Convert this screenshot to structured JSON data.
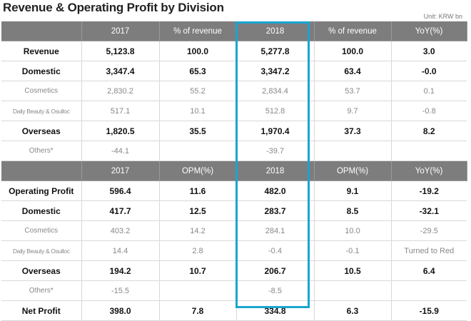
{
  "title": "Revenue & Operating Profit by Division",
  "unit": "Unit: KRW bn",
  "highlight_color": "#1aa4d0",
  "section1": {
    "headers": [
      "",
      "2017",
      "% of revenue",
      "2018",
      "% of revenue",
      "YoY(%)"
    ],
    "rows": [
      {
        "label": "Revenue",
        "style": "bold",
        "cells": [
          "5,123.8",
          "100.0",
          "5,277.8",
          "100.0",
          "3.0"
        ]
      },
      {
        "label": "Domestic",
        "style": "bold",
        "cells": [
          "3,347.4",
          "65.3",
          "3,347.2",
          "63.4",
          "-0.0"
        ]
      },
      {
        "label": "Cosmetics",
        "style": "sub",
        "cells": [
          "2,830.2",
          "55.2",
          "2,834.4",
          "53.7",
          "0.1"
        ]
      },
      {
        "label": "Daily Beauty & Osulloc",
        "style": "sub",
        "cells": [
          "517.1",
          "10.1",
          "512.8",
          "9.7",
          "-0.8"
        ]
      },
      {
        "label": "Overseas",
        "style": "bold",
        "cells": [
          "1,820.5",
          "35.5",
          "1,970.4",
          "37.3",
          "8.2"
        ]
      },
      {
        "label": "Others*",
        "style": "sub",
        "cells": [
          "-44.1",
          "",
          "-39.7",
          "",
          ""
        ]
      }
    ]
  },
  "section2": {
    "headers": [
      "",
      "2017",
      "OPM(%)",
      "2018",
      "OPM(%)",
      "YoY(%)"
    ],
    "rows": [
      {
        "label": "Operating Profit",
        "style": "bold",
        "cells": [
          "596.4",
          "11.6",
          "482.0",
          "9.1",
          "-19.2"
        ]
      },
      {
        "label": "Domestic",
        "style": "bold",
        "cells": [
          "417.7",
          "12.5",
          "283.7",
          "8.5",
          "-32.1"
        ]
      },
      {
        "label": "Cosmetics",
        "style": "sub",
        "cells": [
          "403.2",
          "14.2",
          "284.1",
          "10.0",
          "-29.5"
        ]
      },
      {
        "label": "Daily Beauty & Osulloc",
        "style": "sub",
        "cells": [
          "14.4",
          "2.8",
          "-0.4",
          "-0.1",
          "Turned to Red"
        ]
      },
      {
        "label": "Overseas",
        "style": "bold",
        "cells": [
          "194.2",
          "10.7",
          "206.7",
          "10.5",
          "6.4"
        ]
      },
      {
        "label": "Others*",
        "style": "sub",
        "cells": [
          "-15.5",
          "",
          "-8.5",
          "",
          ""
        ]
      },
      {
        "label": "Net Profit",
        "style": "bold",
        "cells": [
          "398.0",
          "7.8",
          "334.8",
          "6.3",
          "-15.9"
        ]
      }
    ]
  }
}
